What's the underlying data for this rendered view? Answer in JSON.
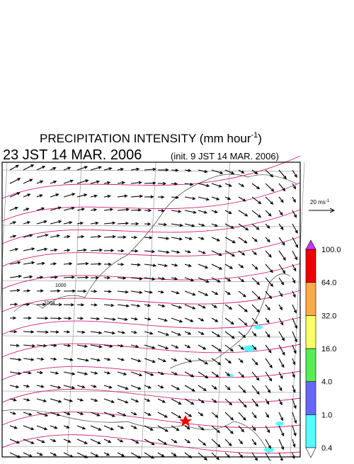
{
  "title": {
    "text": "PRECIPITATION INTENSITY (mm hour",
    "sup": "-1",
    "close": ")"
  },
  "valid_time": "23 JST 14 MAR. 2006",
  "init_time": "(init. 9 JST 14 MAR. 2006)",
  "scale_arrow": {
    "text": "20 ms",
    "sup": "-1"
  },
  "isobar_labels": [
    "1000",
    "1004"
  ],
  "colorbar": {
    "levels": [
      {
        "value": 0.4,
        "label": "0.4"
      },
      {
        "value": 1.0,
        "label": "1.0"
      },
      {
        "value": 4.0,
        "label": "4.0"
      },
      {
        "value": 16.0,
        "label": "16.0"
      },
      {
        "value": 32.0,
        "label": "32.0"
      },
      {
        "value": 64.0,
        "label": "64.0"
      },
      {
        "value": 100.0,
        "label": "100.0"
      }
    ],
    "colors": [
      "#55ffff",
      "#6666ff",
      "#55ee55",
      "#ffff66",
      "#ffaa44",
      "#ee0000"
    ],
    "under_color": "#ffffff",
    "over_color": "#cc33ff"
  }
}
